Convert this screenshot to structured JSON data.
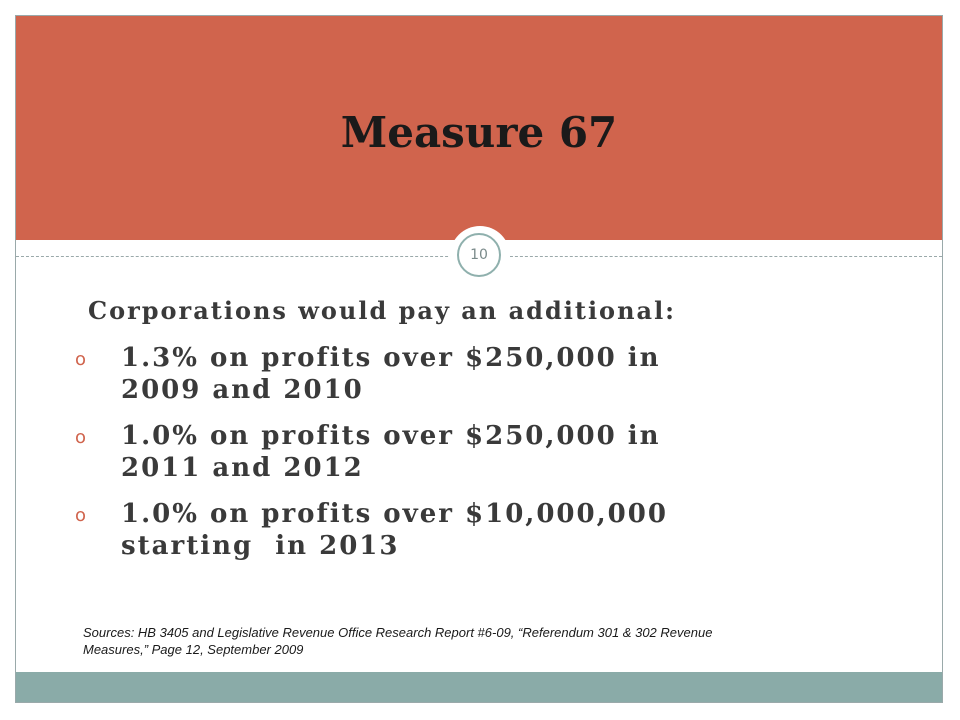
{
  "slide": {
    "title": "Measure 67",
    "page_number": "10",
    "lead": "Corporations would pay an additional:",
    "bullet_marker": "o",
    "bullets": [
      {
        "line1": "1.3% on profits over $250,000 in",
        "line2": "2009 and 2010"
      },
      {
        "line1": "1.0% on profits over $250,000 in",
        "line2": "2011 and 2012"
      },
      {
        "line1": "1.0% on profits over $10,000,000",
        "line2": "starting  in 2013"
      }
    ],
    "sources_line1": "Sources: HB 3405 and Legislative Revenue Office Research Report #6-09, “Referendum 301 & 302 Revenue",
    "sources_line2": "Measures,” Page 12, September 2009"
  },
  "colors": {
    "header": "#d0644d",
    "footer": "#8aaba8",
    "bullet": "#d0644d"
  }
}
